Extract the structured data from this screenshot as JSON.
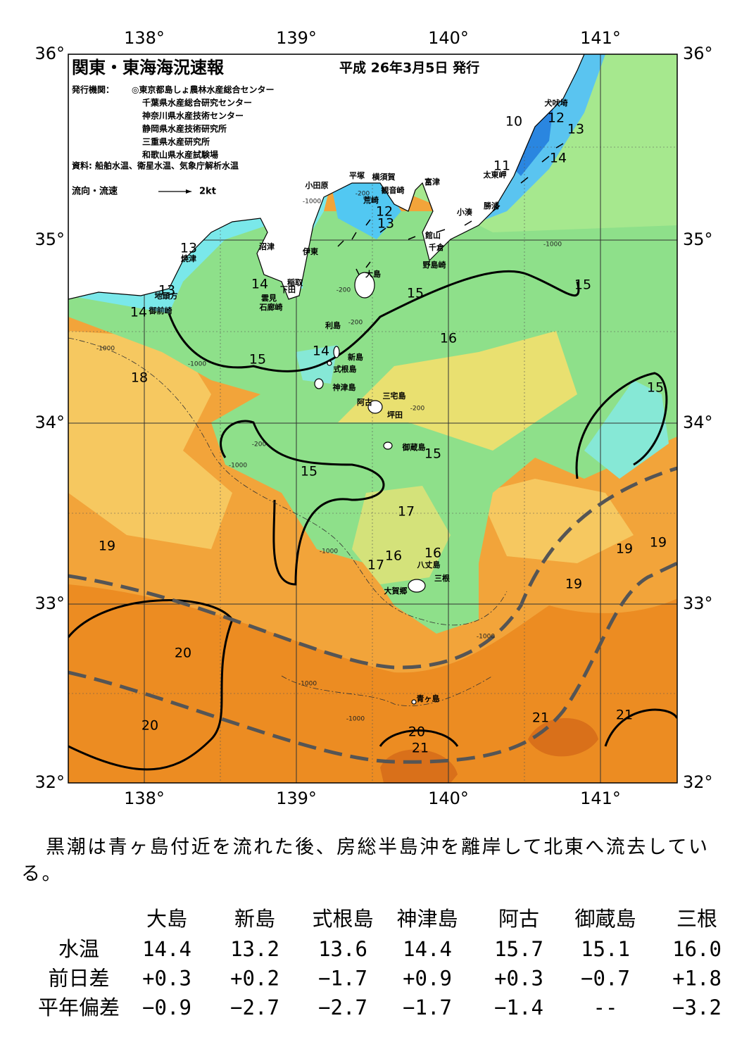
{
  "header": {
    "title": "関東・東海海況速報",
    "date": "平成 26年3月5日 発行",
    "publisher_label": "発行機関：",
    "publishers": [
      "◎東京都島しょ農林水産総合センター",
      "千葉県水産総合研究センター",
      "神奈川県水産技術センター",
      "静岡県水産技術研究所",
      "三重県水産研究所",
      "和歌山県水産試験場"
    ],
    "sources": "資料: 船舶水温、衛星水温、気象庁解析水温",
    "flow_label": "流向・流速",
    "flow_scale": "2kt"
  },
  "map": {
    "lon_labels": [
      "138°",
      "139°",
      "140°",
      "141°"
    ],
    "lat_labels": [
      "36°",
      "35°",
      "34°",
      "33°",
      "32°"
    ],
    "places": [
      "犬吠埼",
      "太東岬",
      "勝浦",
      "小湊",
      "富津",
      "横須賀",
      "観音崎",
      "荒崎",
      "平塚",
      "小田原",
      "館山",
      "千倉",
      "野島崎",
      "沼津",
      "伊東",
      "焼津",
      "稲取",
      "下田",
      "雲見",
      "石廊崎",
      "地頭方",
      "御前崎",
      "大島",
      "利島",
      "新島",
      "式根島",
      "神津島",
      "三宅島",
      "阿古",
      "坪田",
      "御蔵島",
      "八丈島",
      "三根",
      "大賀郷",
      "青ヶ島"
    ],
    "isotherm_labels": [
      "10",
      "12",
      "13",
      "11",
      "14",
      "12",
      "13",
      "13",
      "14",
      "13",
      "14",
      "15",
      "15",
      "16",
      "14",
      "15",
      "18",
      "15",
      "15",
      "15",
      "17",
      "19",
      "19",
      "19",
      "16",
      "16",
      "17",
      "19",
      "20",
      "20",
      "21",
      "21",
      "20",
      "21"
    ],
    "depth_labels": [
      "-200",
      "-200",
      "-200",
      "-200",
      "-200",
      "-1000",
      "-1000",
      "-1000",
      "-1000",
      "-1000",
      "-1000",
      "-1000",
      "-1000",
      "-1000"
    ]
  },
  "summary": "黒潮は青ヶ島付近を流れた後、房総半島沖を離岸して北東へ流去している。",
  "table": {
    "columns": [
      "大島",
      "新島",
      "式根島",
      "神津島",
      "阿古",
      "御蔵島",
      "三根"
    ],
    "rows": [
      {
        "label": "水温",
        "cells": [
          "14.4",
          "13.2",
          "13.6",
          "14.4",
          "15.7",
          "15.1",
          "16.0"
        ]
      },
      {
        "label": "前日差",
        "cells": [
          "+0.3",
          "+0.2",
          "−1.7",
          "+0.9",
          "+0.3",
          "−0.7",
          "+1.8"
        ]
      },
      {
        "label": "平年偏差",
        "cells": [
          "−0.9",
          "−2.7",
          "−2.7",
          "−1.7",
          "−1.4",
          "--",
          "−3.2"
        ]
      }
    ]
  }
}
